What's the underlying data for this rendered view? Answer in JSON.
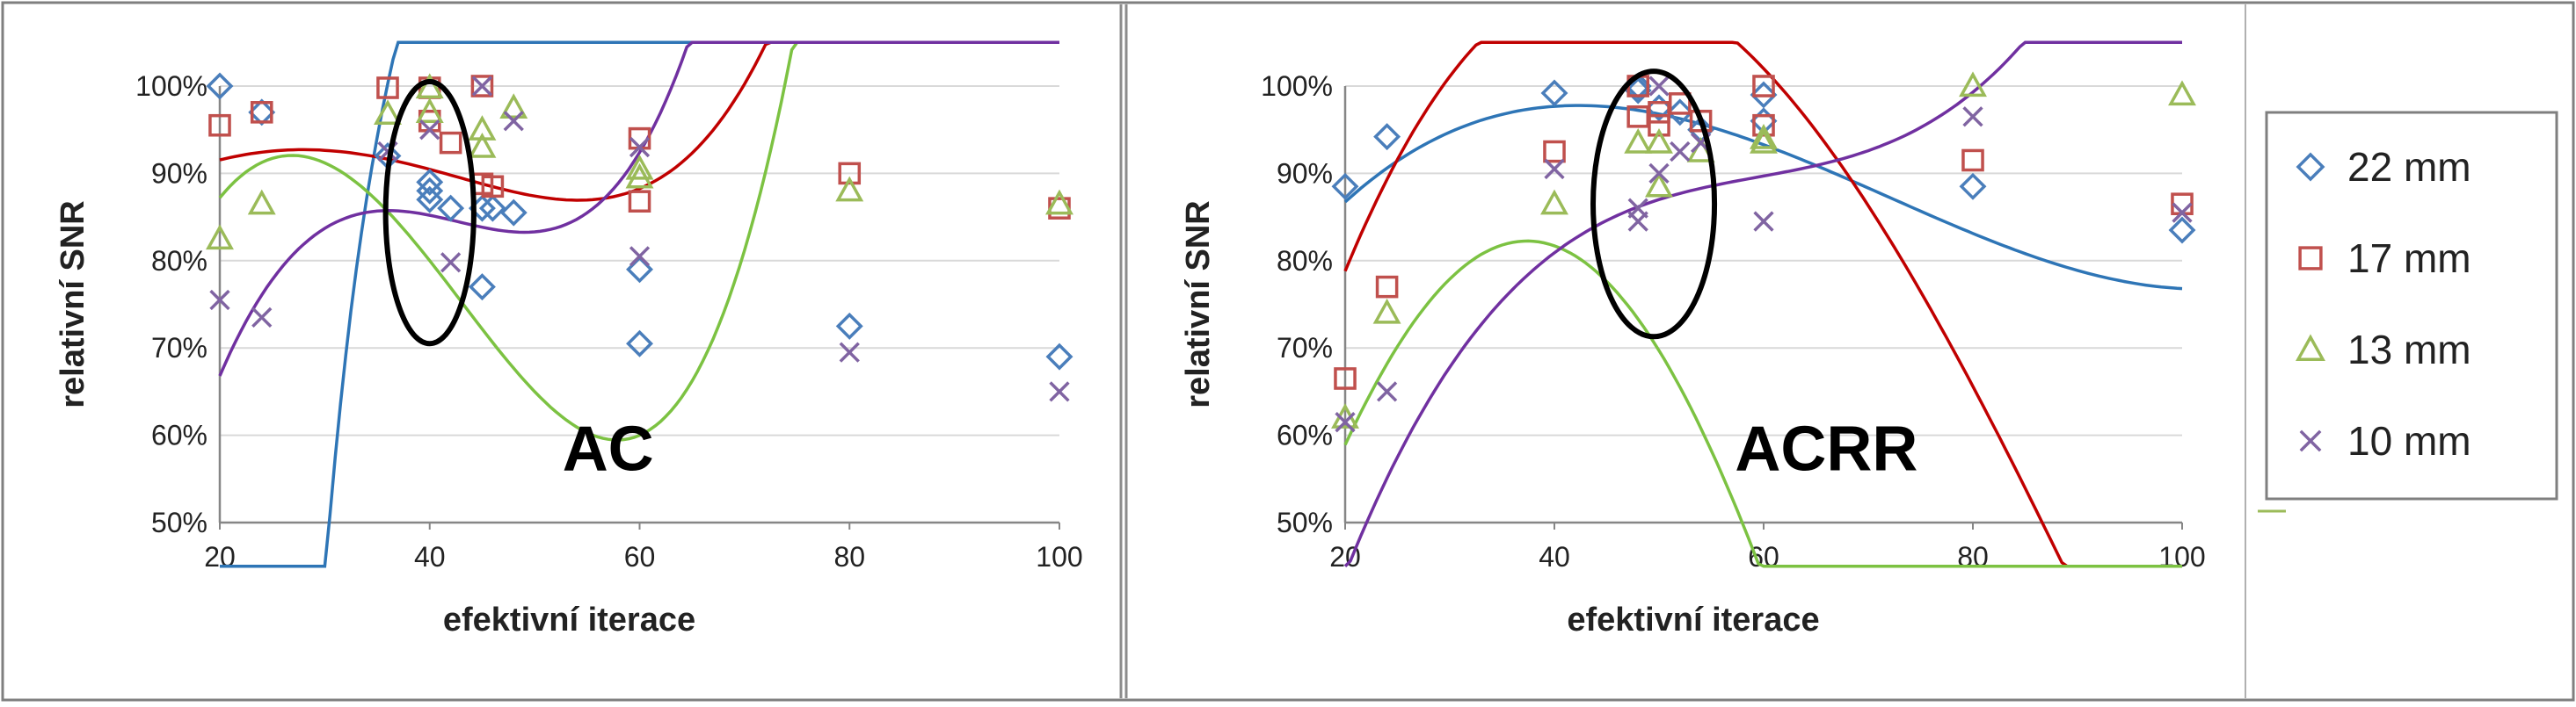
{
  "chart_data": [
    {
      "type": "scatter",
      "panel_label": "AC",
      "xlabel": "efektivní iterace",
      "ylabel": "relativní SNR",
      "xlim": [
        20,
        100
      ],
      "ylim": [
        50,
        100
      ],
      "xticks": [
        20,
        40,
        60,
        80,
        100
      ],
      "yticks": [
        50,
        60,
        70,
        80,
        90,
        100
      ],
      "ytick_labels": [
        "50%",
        "60%",
        "70%",
        "80%",
        "90%",
        "100%"
      ],
      "grid": "horizontal",
      "trendlines": "polynomial",
      "highlight_ellipse": {
        "cx": 40,
        "cy": 85.5,
        "rx": 4.2,
        "ry": 15
      },
      "series": [
        {
          "name": "22 mm",
          "x": [
            20,
            24,
            36,
            40,
            40,
            40,
            42,
            45,
            45,
            46,
            48,
            60,
            60,
            80,
            100
          ],
          "y": [
            100,
            97,
            92,
            89,
            88,
            87,
            86,
            77,
            86,
            86,
            85.5,
            79,
            70.5,
            72.5,
            69
          ],
          "trend": [
            -0.0006,
            0.1348,
            -10.2,
            328,
            -3770
          ]
        },
        {
          "name": "17 mm",
          "x": [
            20,
            24,
            36,
            40,
            40,
            42,
            45,
            45,
            46,
            60,
            60,
            80,
            100
          ],
          "y": [
            95.5,
            97,
            99.8,
            99.8,
            96,
            93.5,
            88.8,
            100,
            88.5,
            94,
            86.8,
            90,
            86
          ],
          "trend": [
            1e-05,
            -0.001,
            0.0186,
            0.43,
            81.9
          ]
        },
        {
          "name": "13 mm",
          "x": [
            20,
            24,
            36,
            40,
            40,
            45,
            45,
            48,
            60,
            60,
            80,
            100
          ],
          "y": [
            82.5,
            86.5,
            96.8,
            99.8,
            97,
            95,
            93,
            97.5,
            90.5,
            89.5,
            88,
            86.5
          ],
          "trend": [
            1e-05,
            0.0005,
            -0.176,
            7.6,
            0
          ]
        },
        {
          "name": "10 mm",
          "x": [
            20,
            24,
            36,
            40,
            42,
            45,
            48,
            60,
            60,
            80,
            100
          ],
          "y": [
            75.5,
            73.5,
            92.5,
            95,
            79.8,
            100,
            96,
            80.5,
            93,
            69.5,
            65
          ],
          "trend": [
            1e-05,
            0.0006,
            -0.186,
            9.2,
            -49.2
          ]
        }
      ]
    },
    {
      "type": "scatter",
      "panel_label": "ACRR",
      "xlabel": "efektivní iterace",
      "ylabel": "relativní SNR",
      "xlim": [
        20,
        100
      ],
      "ylim": [
        50,
        100
      ],
      "xticks": [
        20,
        40,
        60,
        80,
        100
      ],
      "yticks": [
        50,
        60,
        70,
        80,
        90,
        100
      ],
      "ytick_labels": [
        "50%",
        "60%",
        "70%",
        "80%",
        "90%",
        "100%"
      ],
      "grid": "horizontal",
      "trendlines": "polynomial",
      "highlight_ellipse": {
        "cx": 49.5,
        "cy": 86.5,
        "rx": 5.8,
        "ry": 15.2
      },
      "series": [
        {
          "name": "22 mm",
          "x": [
            20,
            24,
            40,
            48,
            48,
            50,
            52,
            54,
            60,
            60,
            80,
            100
          ],
          "y": [
            88.5,
            94.2,
            99.2,
            100,
            99.5,
            97.5,
            97,
            95,
            99,
            96,
            88.5,
            83.5
          ],
          "trend": [
            0,
            0.0002,
            -0.0432,
            2.58,
            50.8
          ]
        },
        {
          "name": "17 mm",
          "x": [
            20,
            24,
            40,
            48,
            48,
            50,
            50,
            52,
            54,
            60,
            60,
            80,
            100
          ],
          "y": [
            66.5,
            77,
            92.5,
            100,
            96.5,
            97,
            95.5,
            98,
            96,
            100,
            95.5,
            91.5,
            86.5
          ],
          "trend": [
            0,
            0.0003,
            -0.088,
            6.06,
            -9.6
          ]
        },
        {
          "name": "13 mm",
          "x": [
            20,
            24,
            40,
            48,
            50,
            50,
            54,
            60,
            60,
            80,
            100
          ],
          "y": [
            62,
            74,
            86.5,
            93.5,
            88.5,
            93.5,
            92.5,
            93.5,
            94,
            100,
            99
          ],
          "trend": [
            1e-05,
            -0.0015,
            0.004,
            3.9,
            -10.3
          ]
        },
        {
          "name": "10 mm",
          "x": [
            20,
            24,
            40,
            48,
            48,
            50,
            50,
            52,
            54,
            60,
            80,
            100
          ],
          "y": [
            61.5,
            65,
            90.5,
            86,
            84.5,
            100,
            90,
            92.5,
            93.5,
            84.5,
            96.5,
            85.5
          ],
          "trend": [
            0,
            0.0006,
            -0.107,
            6.58,
            -49.5
          ]
        }
      ]
    }
  ],
  "legend": {
    "placement": "right",
    "items": [
      {
        "label": "22 mm",
        "marker": "diamond",
        "color": "#4a7ebb"
      },
      {
        "label": "17 mm",
        "marker": "square",
        "color": "#c0504d"
      },
      {
        "label": "13 mm",
        "marker": "triangle",
        "color": "#9bbb59"
      },
      {
        "label": "10 mm",
        "marker": "x",
        "color": "#8064a2"
      }
    ]
  },
  "colors": {
    "trend": [
      "#2e75b6",
      "#c00000",
      "#7cc242",
      "#7030a0"
    ],
    "grid": "#d9d9d9",
    "frame": "#7f7f7f"
  }
}
